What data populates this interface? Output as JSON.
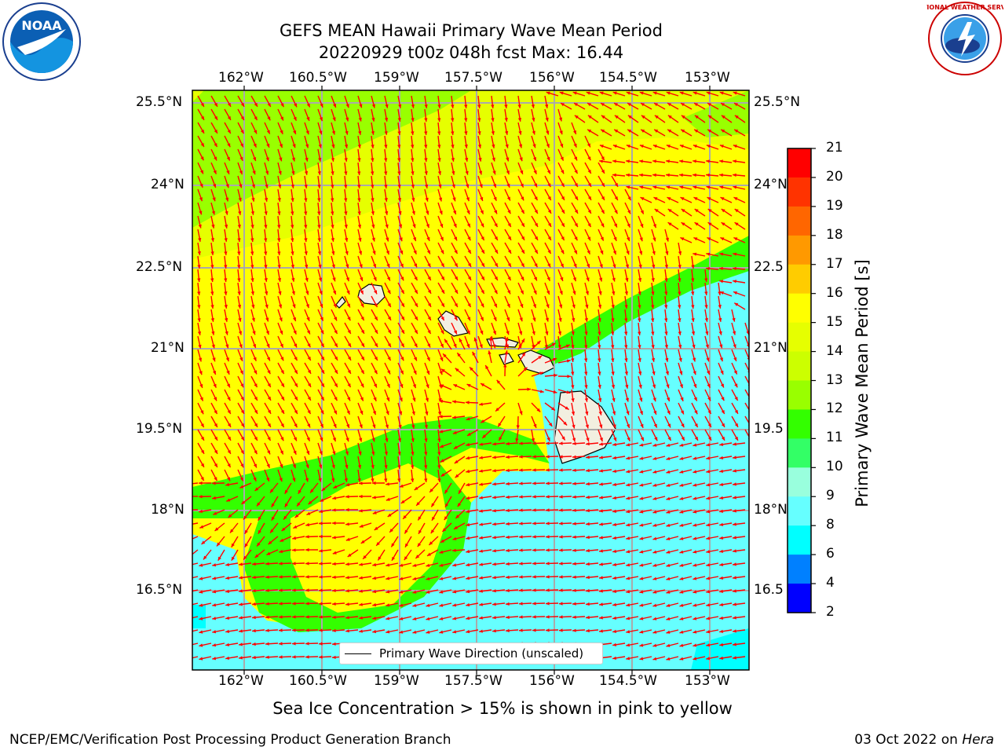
{
  "title": {
    "line1": "GEFS MEAN Hawaii Primary Wave Mean Period",
    "line2": "20220929 t00z 048h fcst   Max: 16.44"
  },
  "axes": {
    "lon_labels": [
      "162°W",
      "160.5°W",
      "159°W",
      "157.5°W",
      "156°W",
      "154.5°W",
      "153°W"
    ],
    "lat_labels": [
      "25.5°N",
      "24°N",
      "22.5°N",
      "21°N",
      "19.5°N",
      "18°N",
      "16.5°N"
    ],
    "lat_labels_right": [
      "25.5°N",
      "24°N",
      "22.5",
      "21°N",
      "19.5",
      "18°N",
      "16.5"
    ]
  },
  "colorbar": {
    "label": "Primary Wave Mean Period [s]",
    "ticks": [
      "21",
      "20",
      "19",
      "18",
      "17",
      "16",
      "15",
      "14",
      "13",
      "12",
      "11",
      "10",
      "9",
      "8",
      "6",
      "4",
      "2"
    ],
    "colors": [
      "#ff0000",
      "#ff3300",
      "#ff6600",
      "#ff9900",
      "#ffcc00",
      "#ffff00",
      "#e6ff00",
      "#ccff00",
      "#99ff00",
      "#33ff00",
      "#33ff66",
      "#99ffdd",
      "#66ffff",
      "#00ffff",
      "#0080ff",
      "#0000ff"
    ]
  },
  "legend": {
    "label": "Primary Wave Direction (unscaled)"
  },
  "bottom_note": "Sea Ice Concentration > 15% is shown in pink to yellow",
  "footer": {
    "left": "NCEP/EMC/Verification Post Processing Product Generation Branch",
    "date": "03 Oct 2022 on ",
    "machine": "Hera"
  },
  "logos": {
    "noaa_text": "NOAA",
    "nws_text": "NATIONAL WEATHER SERVICE"
  },
  "colors": {
    "arrow": "#ff0000",
    "grid": "#aaaaaa",
    "land": "#f2efe0"
  }
}
